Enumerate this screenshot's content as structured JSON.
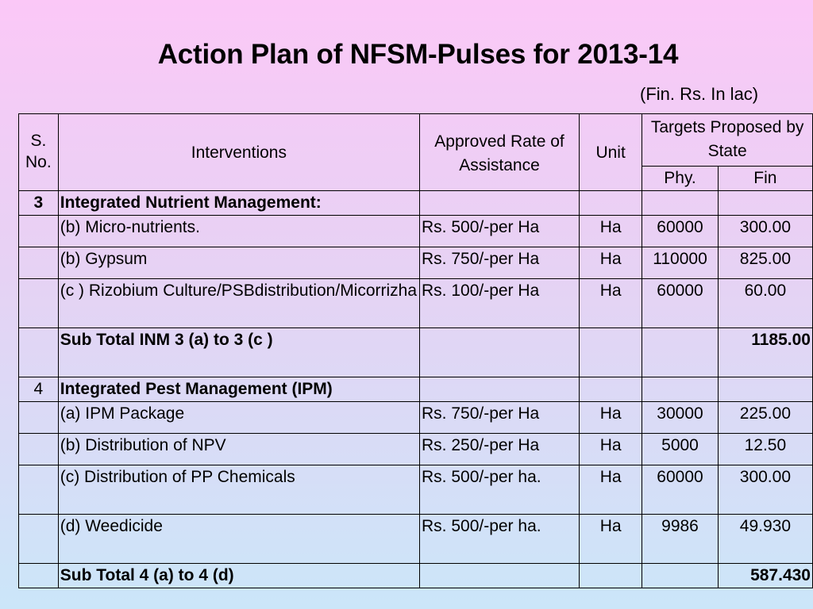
{
  "title": "Action Plan of NFSM-Pulses for 2013-14",
  "unit_note": "(Fin. Rs. In lac)",
  "header": {
    "sno": "S. No.",
    "interventions": "Interventions",
    "rate": "Approved Rate of Assistance",
    "unit": "Unit",
    "targets": "Targets Proposed by State",
    "phy": "Phy.",
    "fin": "Fin"
  },
  "rows": [
    {
      "sno": "3",
      "intervention": "Integrated Nutrient Management:",
      "rate": "",
      "unit": "",
      "phy": "",
      "fin": ""
    },
    {
      "sno": "",
      "intervention": "(b)  Micro-nutrients.",
      "rate": "Rs. 500/-per Ha",
      "unit": "Ha",
      "phy": "60000",
      "fin": "300.00"
    },
    {
      "sno": "",
      "intervention": "(b) Gypsum",
      "rate": "Rs. 750/-per Ha",
      "unit": "Ha",
      "phy": "110000",
      "fin": "825.00"
    },
    {
      "sno": "",
      "intervention": "(c ) Rizobium Culture/PSBdistribution/Micorrizha",
      "rate": "Rs. 100/-per Ha",
      "unit": "Ha",
      "phy": "60000",
      "fin": "60.00"
    },
    {
      "sno": "",
      "intervention": "Sub Total INM 3 (a) to 3 (c )",
      "rate": "",
      "unit": "",
      "phy": "",
      "fin": "1185.00"
    },
    {
      "sno": "4",
      "intervention": "Integrated Pest Management (IPM)",
      "rate": "",
      "unit": "",
      "phy": "",
      "fin": ""
    },
    {
      "sno": "",
      "intervention": "(a) IPM Package",
      "rate": "Rs. 750/-per Ha",
      "unit": "Ha",
      "phy": "30000",
      "fin": "225.00"
    },
    {
      "sno": "",
      "intervention": "(b) Distribution of NPV",
      "rate": "Rs. 250/-per Ha",
      "unit": "Ha",
      "phy": "5000",
      "fin": "12.50"
    },
    {
      "sno": "",
      "intervention": "(c) Distribution of PP Chemicals",
      "rate": "Rs. 500/-per ha.",
      "unit": "Ha",
      "phy": "60000",
      "fin": "300.00"
    },
    {
      "sno": "",
      "intervention": "(d) Weedicide",
      "rate": "Rs. 500/-per ha.",
      "unit": "Ha",
      "phy": "9986",
      "fin": "49.930"
    },
    {
      "sno": "",
      "intervention": "Sub Total 4 (a) to 4 (d)",
      "rate": "",
      "unit": "",
      "phy": "",
      "fin": "587.430"
    }
  ]
}
